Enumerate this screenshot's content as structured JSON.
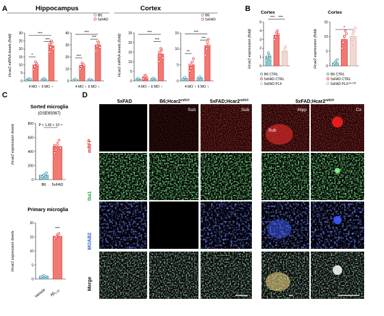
{
  "panels": {
    "a": "A",
    "b": "B",
    "c": "C",
    "d": "D"
  },
  "colors": {
    "b6": "#2f8a9c",
    "fad": "#e0201e",
    "plx": "#d9a79c",
    "fadFill": "#f07a72",
    "b6Fill": "#8fc7cf"
  },
  "a": {
    "hippocampus": {
      "title": "Hippocampus",
      "ylabel": "Hcar2 mRNA levels (fold)",
      "legend": [
        "B6",
        "5xFAD"
      ],
      "male": {
        "yticks": [
          "0",
          "5",
          "10",
          "15",
          "20",
          "25",
          "30"
        ],
        "xlabel": "4 MO ♂ 6 MO ♂",
        "sig": [
          "*",
          "***",
          "***"
        ]
      },
      "female": {
        "yticks": [
          "0",
          "10",
          "20",
          "30",
          "40"
        ],
        "xlabel": "4 MO ♀ 6 MO ♀",
        "sig": [
          "***",
          "***",
          "***"
        ]
      }
    },
    "cortex": {
      "title": "Cortex",
      "legend": [
        "B6",
        "5xFAD"
      ],
      "male": {
        "yticks": [
          "0",
          "5",
          "10",
          "15",
          "20",
          "25"
        ],
        "xlabel": "4 MO ♂ 6 MO ♂",
        "sig": [
          "***",
          "***"
        ]
      },
      "female": {
        "yticks": [
          "0",
          "5",
          "10",
          "15"
        ],
        "xlabel": "4 MO ♀ 6 MO ♀",
        "sig": [
          "**",
          "***",
          "***"
        ]
      }
    }
  },
  "b": {
    "left": {
      "title": "Cortex",
      "ylabel": "Hcar2 expression (fold)",
      "yticks": [
        "0",
        "1",
        "2",
        "3",
        "4",
        "5"
      ],
      "sig": [
        "***",
        "***"
      ],
      "legend": [
        "B6 CTRL",
        "5xFAD CTRL",
        "5xFAD PLX"
      ]
    },
    "right": {
      "title": "Cortex",
      "ylabel": "Hcar2 expression (fold)",
      "yticks": [
        "0",
        "5",
        "10",
        "15"
      ],
      "sig": [
        "*"
      ],
      "legend": [
        "B6 CTRL",
        "5xFAD CTRL",
        "5xFAD PLX",
        "On-Off"
      ]
    }
  },
  "c": {
    "top": {
      "title1": "Sorted microglia",
      "title2": "(GSE65067)",
      "ylabel": "Hcar2 expression levels",
      "yticks": [
        "0",
        "200",
        "400",
        "600",
        "800"
      ],
      "pval": "P < 1.00 × 10⁻⁶",
      "xlabels": [
        "B6",
        "5xFAD"
      ]
    },
    "bottom": {
      "title": "Primary microglia",
      "ylabel": "Hcar2 expression levels",
      "yticks": [
        "0",
        "5",
        "10",
        "15",
        "20"
      ],
      "sig": "***",
      "xlabels": [
        "Vehicle",
        "Aβ"
      ],
      "xsub": "1-42"
    }
  },
  "d": {
    "colHeaders": [
      "5xFAD",
      "B6;Hcar2",
      "5xFAD;Hcar2",
      "5xFAD;Hcar2"
    ],
    "colSup": "mRFP",
    "rowLabels": [
      "mRFP",
      "Iba1",
      "MOAB2",
      "Merge"
    ],
    "tileLabels": [
      "Sub",
      "Sub",
      "Hipp",
      "Cx"
    ],
    "subLabel": "Sub"
  }
}
